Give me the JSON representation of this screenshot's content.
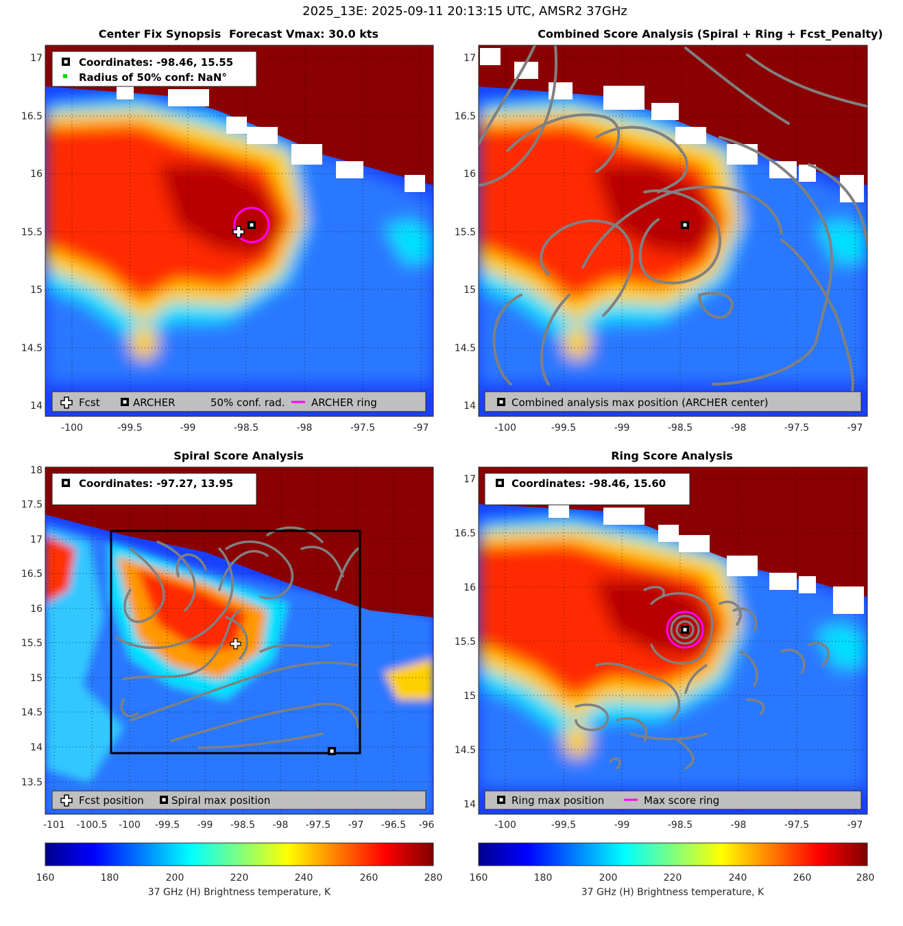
{
  "figure_title": "2025_13E: 2025-09-11 20:13:15 UTC, AMSR2 37GHz",
  "colors": {
    "archer_ring": "#ff00ff",
    "contour": "#808080",
    "legend_bg": "#bfbfbf",
    "cold_bg": "#1a40ff",
    "warm_bg": "#8b0000"
  },
  "colorbar": {
    "label": "37 GHz (H) Brightness temperature, K",
    "ticks": [
      "160",
      "180",
      "200",
      "220",
      "240",
      "260",
      "280"
    ],
    "range": [
      160,
      280
    ],
    "colormap": "jet"
  },
  "panels": {
    "synopsis": {
      "title_left": "Center Fix Synopsis",
      "title_right": "Forecast Vmax: 30.0 kts",
      "info_line1": "Coordinates: -98.46, 15.55",
      "info_line2": "Radius of 50% conf: NaN°",
      "legend": {
        "fcst": "Fcst",
        "archer": "ARCHER",
        "conf": "50% conf. rad.",
        "ring": "ARCHER ring"
      }
    },
    "combined": {
      "title": "Combined Score Analysis (Spiral + Ring + Fcst_Penalty)",
      "legend": {
        "max": "Combined analysis max position (ARCHER center)"
      }
    },
    "spiral": {
      "title": "Spiral Score Analysis",
      "info_line1": "Coordinates: -97.27, 13.95",
      "legend": {
        "fcst": "Fcst position",
        "max": "Spiral max position"
      }
    },
    "ring": {
      "title": "Ring Score Analysis",
      "info_line1": "Coordinates: -98.46, 15.60",
      "legend": {
        "max": "Ring max position",
        "ring": "Max score ring"
      }
    }
  },
  "chart_data": [
    {
      "type": "heatmap",
      "title": "Center Fix Synopsis     Forecast Vmax: 30.0 kts",
      "xlim": [
        -100.2,
        -96.9
      ],
      "ylim": [
        13.9,
        17.1
      ],
      "xticks": [
        "-100",
        "-99.5",
        "-99",
        "-98.5",
        "-98",
        "-97.5",
        "-97"
      ],
      "yticks": [
        "14",
        "14.5",
        "15",
        "15.5",
        "16",
        "16.5",
        "17"
      ],
      "markers": {
        "fcst": [
          -98.57,
          15.5
        ],
        "archer": [
          -98.46,
          15.55
        ]
      },
      "archer_ring_radius_deg": 0.15
    },
    {
      "type": "heatmap",
      "title": "Combined Score Analysis (Spiral + Ring + Fcst_Penalty)",
      "xlim": [
        -100.2,
        -96.9
      ],
      "ylim": [
        13.9,
        17.1
      ],
      "xticks": [
        "-100",
        "-99.5",
        "-99",
        "-98.5",
        "-98",
        "-97.5",
        "-97"
      ],
      "yticks": [
        "14",
        "14.5",
        "15",
        "15.5",
        "16",
        "16.5",
        "17"
      ],
      "markers": {
        "max": [
          -98.46,
          15.55
        ]
      }
    },
    {
      "type": "heatmap",
      "title": "Spiral Score Analysis",
      "xlim": [
        -101.1,
        -95.95
      ],
      "ylim": [
        13.1,
        18.0
      ],
      "xticks": [
        "-101",
        "-100.5",
        "-100",
        "-99.5",
        "-99",
        "-98.5",
        "-98",
        "-97.5",
        "-97",
        "-96.5",
        "-96"
      ],
      "yticks": [
        "13.5",
        "14",
        "14.5",
        "15",
        "15.5",
        "16",
        "16.5",
        "17",
        "17.5",
        "18"
      ],
      "markers": {
        "fcst": [
          -98.57,
          15.5
        ],
        "max": [
          -97.27,
          13.95
        ]
      },
      "search_box": {
        "lon": [
          -100.22,
          -96.92
        ],
        "lat": [
          13.92,
          17.12
        ]
      }
    },
    {
      "type": "heatmap",
      "title": "Ring Score Analysis",
      "xlim": [
        -100.2,
        -96.9
      ],
      "ylim": [
        13.9,
        17.1
      ],
      "xticks": [
        "-100",
        "-99.5",
        "-99",
        "-98.5",
        "-98",
        "-97.5",
        "-97"
      ],
      "yticks": [
        "14",
        "14.5",
        "15",
        "15.5",
        "16",
        "16.5",
        "17"
      ],
      "markers": {
        "max": [
          -98.46,
          15.6
        ]
      },
      "max_ring_radius_deg": 0.15
    }
  ]
}
